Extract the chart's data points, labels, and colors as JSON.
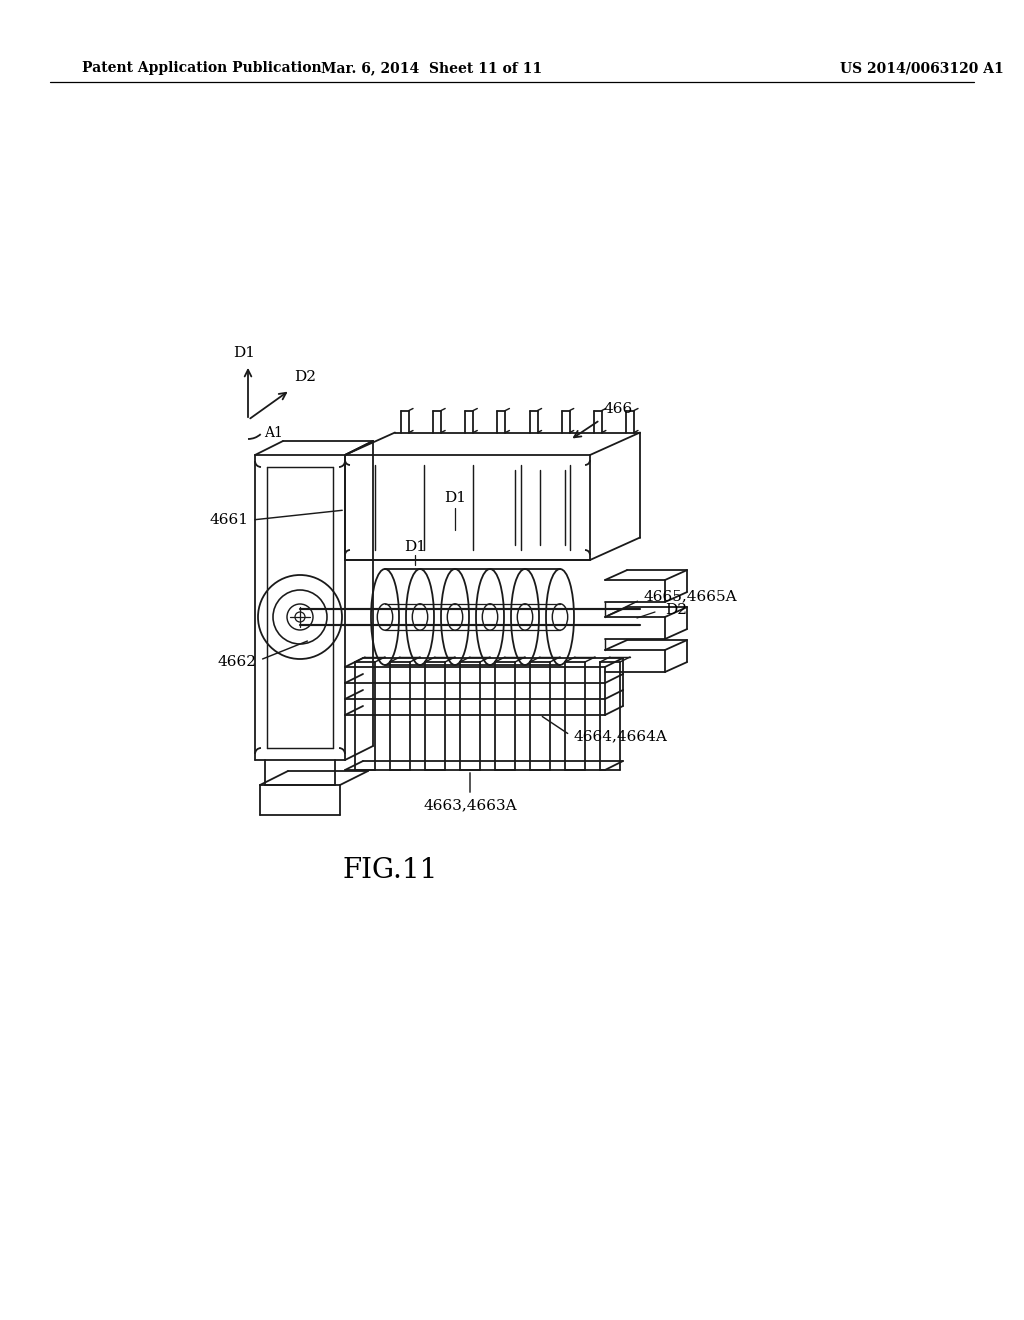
{
  "background_color": "#ffffff",
  "header_left": "Patent Application Publication",
  "header_mid": "Mar. 6, 2014  Sheet 11 of 11",
  "header_right": "US 2014/0063120 A1",
  "fig_label": "FIG.11",
  "drawing_color": "#1a1a1a",
  "line_width": 1.3
}
